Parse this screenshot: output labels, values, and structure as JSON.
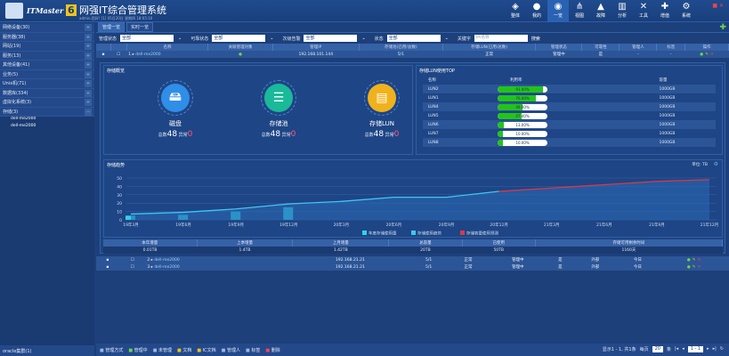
{
  "header": {
    "brand": "ITMaster",
    "version": "6",
    "title": "网强IT综合管理系统",
    "subtitle": "admin,您好! [1] 05月20日 星期四 18:05:10",
    "nav": [
      {
        "label": "整体",
        "icon": "layers-icon",
        "glyph": "◈"
      },
      {
        "label": "我的",
        "icon": "user-icon",
        "glyph": "●"
      },
      {
        "label": "一览",
        "icon": "overview-icon",
        "glyph": "◉"
      },
      {
        "label": "视图",
        "icon": "topology-icon",
        "glyph": "⋔"
      },
      {
        "label": "故障",
        "icon": "warning-icon",
        "glyph": "▲"
      },
      {
        "label": "分析",
        "icon": "chart-icon",
        "glyph": "▥"
      },
      {
        "label": "工具",
        "icon": "tools-icon",
        "glyph": "✕"
      },
      {
        "label": "增值",
        "icon": "plus-icon",
        "glyph": "✚"
      },
      {
        "label": "系统",
        "icon": "gear-icon",
        "glyph": "⚙"
      }
    ]
  },
  "sidebar": {
    "items": [
      {
        "label": "网络设备(30)"
      },
      {
        "label": "服务器(38)"
      },
      {
        "label": "网站(19)"
      },
      {
        "label": "服务(13)"
      },
      {
        "label": "其他设备(41)"
      },
      {
        "label": "业务(5)"
      },
      {
        "label": "Unix机(71)"
      },
      {
        "label": "数据库(334)"
      },
      {
        "label": "虚拟化系统(3)"
      },
      {
        "label": "存储(3)"
      }
    ],
    "subitems": [
      "dell-me2000",
      "dell-me2000"
    ],
    "footer": "oracle集群(1)"
  },
  "tabs": [
    "管理一览",
    "实时一览"
  ],
  "filters": [
    {
      "label": "管理状态",
      "value": "全部"
    },
    {
      "label": "可靠状态",
      "value": "全部"
    },
    {
      "label": "次级告警",
      "value": "全部"
    },
    {
      "label": "状态",
      "value": "全部"
    }
  ],
  "keyword": {
    "label": "关键字",
    "placeholder": "IP/名称"
  },
  "search_label": "搜索",
  "table": {
    "headers": [
      "",
      "",
      "名称",
      "关联管理对象",
      "管理IP",
      "存储池(已用/总数)",
      "存储LUN(已用/总数)",
      "管理状态",
      "可靠性",
      "管理人",
      "标签",
      "操作"
    ],
    "rows": [
      {
        "no": "1",
        "name": "dell-me2000",
        "rel": "●",
        "ip": "192.168.101.144",
        "pool": "5/1",
        "lun": "正常",
        "status": "管理中",
        "rel2": "是",
        "owner": "-",
        "tag": "-"
      },
      {
        "no": "2",
        "name": "dell-me2000",
        "rel": "",
        "ip": "192.168.21.21",
        "pool": "5/1",
        "lun": "正常",
        "status": "管理中",
        "rel2": "是",
        "owner": "外部",
        "tag": "今日"
      },
      {
        "no": "3",
        "name": "dell-me2000",
        "rel": "",
        "ip": "192.168.21.21",
        "pool": "5/1",
        "lun": "正常",
        "status": "管理中",
        "rel2": "是",
        "owner": "外部",
        "tag": "今日"
      }
    ]
  },
  "overview": {
    "title": "存储概览",
    "cards": [
      {
        "name": "磁盘",
        "total_label": "总数",
        "total": "48",
        "abn_label": "异常",
        "abn": "0",
        "color": "#2f8ee8",
        "icon": "disk-icon",
        "glyph": "🖴"
      },
      {
        "name": "存储池",
        "total_label": "总数",
        "total": "48",
        "abn_label": "异常",
        "abn": "0",
        "color": "#19b99a",
        "icon": "database-icon",
        "glyph": "☰"
      },
      {
        "name": "存储LUN",
        "total_label": "总数",
        "total": "48",
        "abn_label": "异常",
        "abn": "0",
        "color": "#f0b21c",
        "icon": "server-icon",
        "glyph": "▤"
      }
    ]
  },
  "lun": {
    "title": "存储LUN使用TOP",
    "headers": [
      "名称",
      "利用率",
      "容量"
    ],
    "rows": [
      {
        "name": "LUN2",
        "pct": 91,
        "label": "91.00%",
        "cap": "1000GB"
      },
      {
        "name": "LUN1",
        "pct": 76,
        "label": "76.00%",
        "cap": "1000GB"
      },
      {
        "name": "LUN4",
        "pct": 49,
        "label": "49.00%",
        "cap": "1000GB"
      },
      {
        "name": "LUN5",
        "pct": 47.4,
        "label": "47.40%",
        "cap": "1000GB"
      },
      {
        "name": "LUN6",
        "pct": 13,
        "label": "13.00%",
        "cap": "1000GB"
      },
      {
        "name": "LUN7",
        "pct": 10,
        "label": "10.00%",
        "cap": "1000GB"
      },
      {
        "name": "LUN8",
        "pct": 10,
        "label": "10.00%",
        "cap": "1000GB"
      }
    ]
  },
  "chart_data": {
    "type": "line",
    "title": "存储趋势",
    "unit": "单位: TB",
    "ylim": [
      0,
      50
    ],
    "yticks": [
      0,
      10,
      20,
      30,
      40,
      50
    ],
    "categories": [
      "19年3月",
      "19年6月",
      "19年9月",
      "19年12月",
      "20年3月",
      "20年6月",
      "20年9月",
      "20年12月",
      "21年3月",
      "21年6月",
      "21年9月",
      "21年12月"
    ],
    "series": [
      {
        "name": "年度存储使用量",
        "type": "bar",
        "color": "#2ed3e8",
        "values": [
          5,
          6,
          10,
          15,
          null,
          null,
          null,
          null,
          null,
          null,
          null,
          null
        ]
      },
      {
        "name": "存储使用趋势",
        "type": "line",
        "color": "#3fc7ef",
        "values": [
          7,
          9,
          13,
          19,
          22,
          27,
          27,
          34,
          null,
          null,
          null,
          null
        ]
      },
      {
        "name": "存储容量使用预测",
        "type": "line",
        "color": "#d8394a",
        "values": [
          null,
          null,
          null,
          null,
          null,
          null,
          null,
          34,
          38,
          42,
          46,
          48
        ]
      }
    ]
  },
  "summary": {
    "headers": [
      "本年增量",
      "上季增量",
      "上月增量",
      "总容量",
      "已使用",
      "存储可用剩余时间"
    ],
    "values": [
      "0.01TB",
      "1.4TB",
      "1.42TB",
      "20TB",
      "50TB",
      "1160天"
    ]
  },
  "footer": {
    "actions": [
      "管理方式",
      "管理中",
      "未管理",
      "文档",
      "IC文档",
      "管理人",
      "标签",
      "删除"
    ],
    "pager": "显示1 - 1, 共1条",
    "per_page_label": "每页",
    "per_page": "20",
    "unit": "条",
    "page": "1 - 1"
  }
}
